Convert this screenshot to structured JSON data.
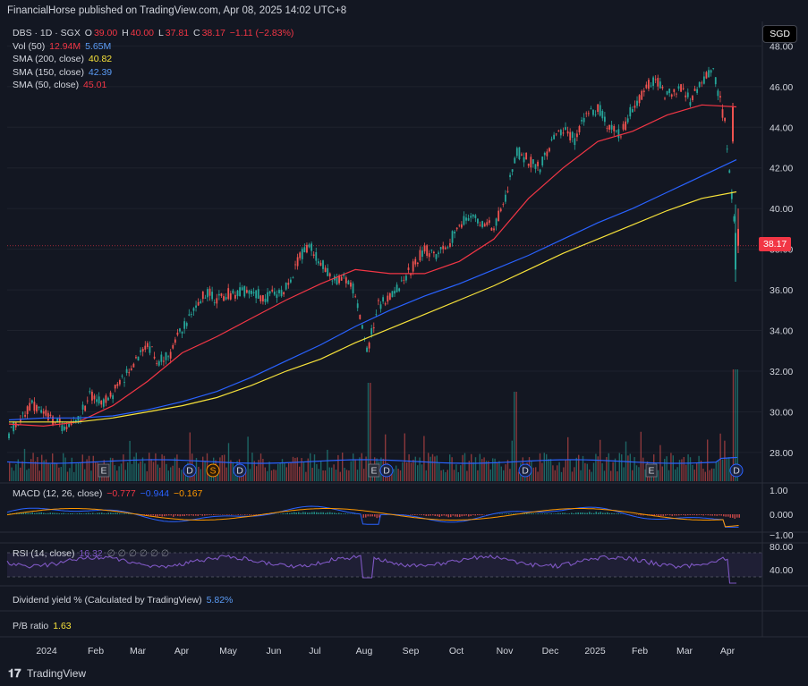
{
  "header": {
    "title": "FinancialHorse published on TradingView.com, Apr 08, 2025 14:02 UTC+8"
  },
  "currency_badge": "SGD",
  "legend": {
    "symbol": "DBS · 1D · SGX",
    "o_label": "O",
    "o_value": "39.00",
    "h_label": "H",
    "h_value": "40.00",
    "l_label": "L",
    "l_value": "37.81",
    "c_label": "C",
    "c_value": "38.17",
    "change": "−1.11 (−2.83%)",
    "vol_label": "Vol (50)",
    "vol_value1": "12.94M",
    "vol_value2": "5.65M",
    "sma200_label": "SMA (200, close)",
    "sma200_value": "40.82",
    "sma150_label": "SMA (150, close)",
    "sma150_value": "42.39",
    "sma50_label": "SMA (50, close)",
    "sma50_value": "45.01"
  },
  "macd_legend": {
    "label": "MACD (12, 26, close)",
    "v1": "−0.777",
    "v2": "−0.944",
    "v3": "−0.167"
  },
  "rsi_legend": {
    "label": "RSI (14, close)",
    "v1": "16.32",
    "rest": "∅ ∅ ∅ ∅ ∅ ∅"
  },
  "dividend": {
    "label": "Dividend yield % (Calculated by TradingView)",
    "value": "5.82%"
  },
  "pb": {
    "label": "P/B ratio",
    "value": "1.63"
  },
  "last_price_tag": "38.17",
  "footer": {
    "brand": "TradingView"
  },
  "colors": {
    "up": "#26a69a",
    "down": "#ef5350",
    "sma50": "#f23645",
    "sma150": "#2962ff",
    "sma200": "#f7e23a",
    "rsi": "#7e57c2",
    "macd": "#2962ff",
    "signal": "#ff9800"
  },
  "chart_data": {
    "type": "line",
    "title": "DBS · 1D · SGX",
    "yaxis": {
      "ticks": [
        "28.00",
        "30.00",
        "32.00",
        "34.00",
        "36.00",
        "38.00",
        "40.00",
        "42.00",
        "44.00",
        "46.00",
        "48.00"
      ],
      "ylim": [
        26.5,
        48.5
      ]
    },
    "xaxis": {
      "ticks": [
        "2024",
        "Feb",
        "Mar",
        "Apr",
        "May",
        "Jun",
        "Jul",
        "Aug",
        "Sep",
        "Oct",
        "Nov",
        "Dec",
        "2025",
        "Feb",
        "Mar",
        "Apr"
      ]
    },
    "series": [
      {
        "name": "SMA (50, close)",
        "values": [
          29.4,
          29.3,
          29.5,
          30.3,
          31.5,
          32.9,
          33.7,
          34.6,
          35.5,
          36.3,
          37.0,
          36.8,
          36.8,
          37.4,
          38.5,
          40.5,
          42.0,
          43.3,
          43.8,
          44.6,
          45.1,
          45.0
        ]
      },
      {
        "name": "SMA (150, close)",
        "values": [
          29.6,
          29.7,
          29.7,
          29.8,
          30.1,
          30.5,
          31.0,
          31.7,
          32.5,
          33.3,
          34.2,
          35.0,
          35.7,
          36.3,
          37.0,
          37.7,
          38.5,
          39.3,
          40.0,
          40.8,
          41.6,
          42.4
        ]
      },
      {
        "name": "SMA (200, close)",
        "values": [
          29.5,
          29.5,
          29.5,
          29.7,
          30.0,
          30.3,
          30.7,
          31.3,
          32.0,
          32.6,
          33.4,
          34.1,
          34.8,
          35.5,
          36.2,
          37.0,
          37.8,
          38.5,
          39.2,
          39.9,
          40.5,
          40.82
        ]
      }
    ],
    "price": [
      29.0,
      29.8,
      30.3,
      29.9,
      29.5,
      29.2,
      29.6,
      30.8,
      30.4,
      30.9,
      31.7,
      32.6,
      33.3,
      32.5,
      32.9,
      34.1,
      35.0,
      35.9,
      35.6,
      35.8,
      35.9,
      36.0,
      35.6,
      35.8,
      36.1,
      37.4,
      38.2,
      37.3,
      36.6,
      36.5,
      35.9,
      32.9,
      35.2,
      35.8,
      36.3,
      37.2,
      38.0,
      37.6,
      38.2,
      39.2,
      39.6,
      39.3,
      39.1,
      40.5,
      42.8,
      42.4,
      42.0,
      43.3,
      43.8,
      43.4,
      44.5,
      45.0,
      44.0,
      43.6,
      45.0,
      45.8,
      46.4,
      45.5,
      46.0,
      45.3,
      46.2,
      46.8,
      44.2,
      38.17
    ],
    "macd": {
      "yticks": [
        "1.00",
        "0.000",
        "−1.00"
      ]
    },
    "rsi": {
      "yticks": [
        "80.00",
        "40.00"
      ]
    },
    "events": [
      "E",
      "D",
      "S",
      "D",
      "E",
      "D",
      "D",
      "E",
      "D"
    ]
  }
}
